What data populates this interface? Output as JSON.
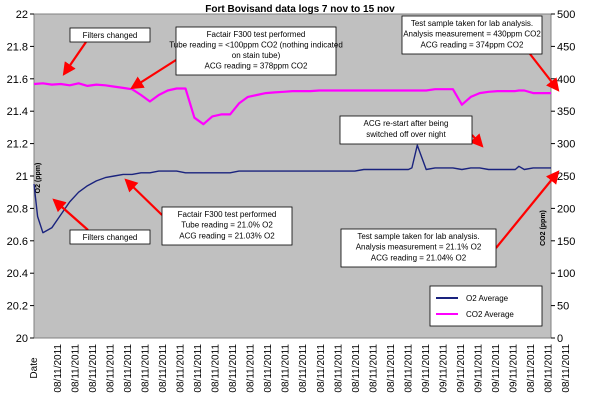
{
  "chart_data": {
    "type": "line",
    "title": "Fort Bovisand data logs 7 nov to 15 nov",
    "xlabel": "Date",
    "ylabel_left": "O2 (ppm)",
    "ylabel_right": "CO2 (ppm)",
    "ylim_left": [
      20,
      22
    ],
    "ylim_right": [
      0,
      500
    ],
    "yticks_left": [
      "20",
      "20.2",
      "20.4",
      "20.6",
      "20.8",
      "21",
      "21.2",
      "21.4",
      "21.6",
      "21.8",
      "22"
    ],
    "yticks_right": [
      "0",
      "50",
      "100",
      "150",
      "200",
      "250",
      "300",
      "350",
      "400",
      "450",
      "500"
    ],
    "x_tick_labels": [
      "08/11/2011",
      "08/11/2011",
      "08/11/2011",
      "08/11/2011",
      "08/11/2011",
      "08/11/2011",
      "08/11/2011",
      "08/11/2011",
      "08/11/2011",
      "08/11/2011",
      "08/11/2011",
      "08/11/2011",
      "08/11/2011",
      "08/11/2011",
      "08/11/2011",
      "08/11/2011",
      "08/11/2011",
      "08/11/2011",
      "08/11/2011",
      "08/11/2011",
      "08/11/2011",
      "09/11/2011",
      "09/11/2011",
      "09/11/2011",
      "09/11/2011",
      "09/11/2011",
      "09/11/2011",
      "08/11/2011",
      "08/11/2011",
      "08/11/2011"
    ],
    "legend_position": "bottom-right",
    "grid": false,
    "background": "#c0c0c0",
    "series": [
      {
        "name": "O2 Average",
        "axis": "left",
        "color": "#1a237e",
        "x": [
          0,
          0.2,
          0.5,
          1.0,
          1.5,
          2,
          2.5,
          3,
          3.5,
          4,
          4.5,
          5,
          5.5,
          6,
          6.5,
          7,
          7.5,
          8,
          8.5,
          9,
          9.5,
          10,
          10.5,
          11,
          11.5,
          12,
          12.5,
          13,
          13.5,
          14,
          14.5,
          15,
          15.5,
          16,
          16.5,
          17,
          17.5,
          18,
          18.5,
          19,
          19.5,
          20,
          20.5,
          21,
          21.2,
          21.5,
          22,
          22.5,
          23,
          23.5,
          24,
          24.5,
          25,
          25.5,
          26,
          26.5,
          27,
          27.2,
          27.5,
          28,
          28.5,
          29
        ],
        "values": [
          20.95,
          20.75,
          20.65,
          20.68,
          20.76,
          20.84,
          20.9,
          20.94,
          20.97,
          20.99,
          21.0,
          21.01,
          21.01,
          21.02,
          21.02,
          21.03,
          21.03,
          21.03,
          21.02,
          21.02,
          21.02,
          21.02,
          21.02,
          21.02,
          21.03,
          21.03,
          21.03,
          21.03,
          21.03,
          21.03,
          21.03,
          21.03,
          21.03,
          21.03,
          21.03,
          21.03,
          21.03,
          21.03,
          21.04,
          21.04,
          21.04,
          21.04,
          21.04,
          21.04,
          21.05,
          21.19,
          21.04,
          21.05,
          21.05,
          21.05,
          21.04,
          21.05,
          21.05,
          21.04,
          21.04,
          21.04,
          21.04,
          21.06,
          21.04,
          21.05,
          21.05,
          21.05
        ]
      },
      {
        "name": "CO2 Average",
        "axis": "right",
        "color": "#ff00ff",
        "x": [
          0,
          0.5,
          1,
          1.5,
          2,
          2.5,
          3,
          3.5,
          4,
          4.5,
          5,
          5.5,
          6,
          6.5,
          7,
          7.5,
          8,
          8.5,
          9,
          9.5,
          10,
          10.5,
          11,
          11.5,
          12,
          12.5,
          13,
          13.5,
          14,
          14.5,
          15,
          15.5,
          16,
          16.5,
          17,
          17.5,
          18,
          18.5,
          19,
          19.5,
          20,
          20.5,
          21,
          21.5,
          22,
          22.5,
          23,
          23.5,
          24,
          24.5,
          25,
          25.5,
          26,
          26.5,
          27,
          27.2,
          27.5,
          28,
          28.5,
          29
        ],
        "values": [
          392,
          393,
          391,
          392,
          390,
          393,
          389,
          391,
          390,
          388,
          386,
          384,
          375,
          365,
          375,
          382,
          385,
          385,
          340,
          330,
          342,
          345,
          345,
          362,
          372,
          375,
          378,
          379,
          380,
          381,
          381,
          381,
          382,
          382,
          382,
          382,
          382,
          382,
          382,
          382,
          382,
          382,
          382,
          382,
          382,
          384,
          384,
          384,
          360,
          372,
          378,
          380,
          381,
          381,
          381,
          382,
          382,
          378,
          378,
          378
        ]
      }
    ],
    "annotations": [
      {
        "id": "filters-top",
        "lines": [
          "Filters changed"
        ]
      },
      {
        "id": "f300-co2",
        "lines": [
          "Factair F300 test performed",
          "Tube reading = <100ppm CO2 (nothing indicated",
          "on stain tube)",
          "ACG reading = 378ppm CO2"
        ]
      },
      {
        "id": "lab-co2",
        "lines": [
          "Test sample taken for lab analysis.",
          "Analysis measurement = 430ppm CO2",
          "ACG reading = 374ppm CO2"
        ]
      },
      {
        "id": "restart",
        "lines": [
          "ACG re-start after being",
          "switched off over night"
        ]
      },
      {
        "id": "f300-o2",
        "lines": [
          "Factair F300 test performed",
          "Tube reading = 21.0% O2",
          "ACG reading = 21.03% O2"
        ]
      },
      {
        "id": "filters-bottom",
        "lines": [
          "Filters changed"
        ]
      },
      {
        "id": "lab-o2",
        "lines": [
          "Test sample taken for lab analysis.",
          "Analysis measurement = 21.1% O2",
          "ACG reading = 21.04% O2"
        ]
      }
    ]
  }
}
